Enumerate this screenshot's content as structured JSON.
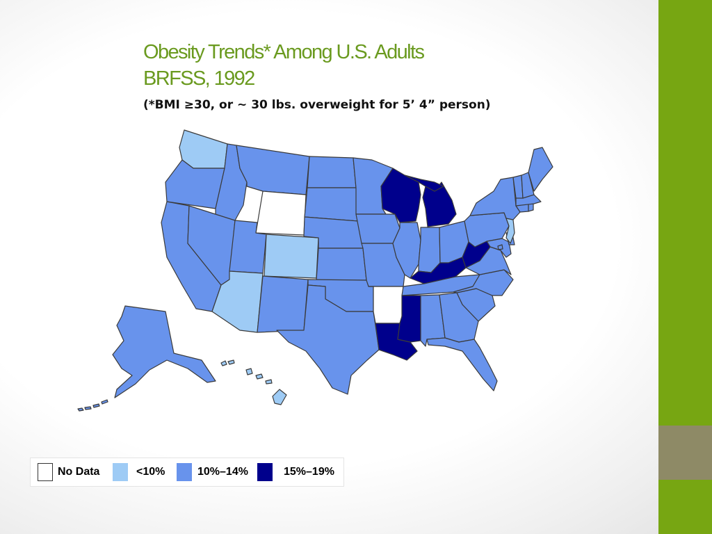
{
  "slide": {
    "title_line1": "Obesity Trends* Among U.S. Adults",
    "title_line2": "BRFSS, 1992",
    "subtitle": "(*BMI ≥30, or ~ 30 lbs. overweight for 5’ 4” person)"
  },
  "theme": {
    "title_color": "#6a9a1f",
    "bar_green": "#77a612",
    "bar_gray": "#8e8a66"
  },
  "legend": [
    {
      "label": "No Data",
      "category": "no-data",
      "color": "#ffffff"
    },
    {
      "label": "<10%",
      "category": "lt10",
      "color": "#9ecbf5"
    },
    {
      "label": "10%–14%",
      "category": "10-14",
      "color": "#6893ec"
    },
    {
      "label": "15%–19%",
      "category": "15-19",
      "color": "#00008c"
    }
  ],
  "states": {
    "WA": "lt10",
    "OR": "10-14",
    "ID": "10-14",
    "MT": "10-14",
    "WY": "no-data",
    "CA": "10-14",
    "NV": "10-14",
    "UT": "10-14",
    "CO": "lt10",
    "AZ": "lt10",
    "NM": "10-14",
    "ND": "10-14",
    "SD": "10-14",
    "NE": "10-14",
    "KS": "10-14",
    "OK": "10-14",
    "TX": "10-14",
    "MN": "10-14",
    "IA": "10-14",
    "MO": "10-14",
    "AR": "no-data",
    "LA": "15-19",
    "WI": "15-19",
    "IL": "10-14",
    "MI": "15-19",
    "IN": "10-14",
    "OH": "10-14",
    "KY": "15-19",
    "TN": "10-14",
    "MS": "15-19",
    "AL": "10-14",
    "GA": "10-14",
    "FL": "10-14",
    "SC": "10-14",
    "NC": "10-14",
    "VA": "10-14",
    "WV": "15-19",
    "MD": "10-14",
    "DE": "10-14",
    "DC": "10-14",
    "PA": "10-14",
    "NJ": "lt10",
    "NY": "10-14",
    "CT": "10-14",
    "RI": "10-14",
    "MA": "10-14",
    "VT": "10-14",
    "NH": "10-14",
    "ME": "10-14",
    "AK": "10-14",
    "HI": "lt10"
  }
}
